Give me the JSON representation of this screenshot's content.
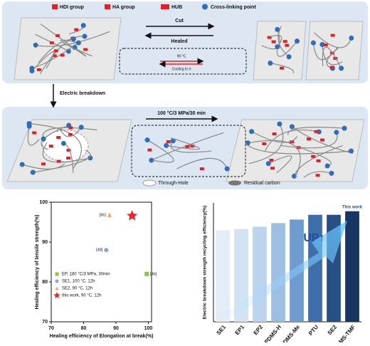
{
  "diagram": {
    "legend": [
      "HDI group",
      "HA group",
      "HUB",
      "Cross-linking point"
    ],
    "cut": "Cut",
    "healed": "Healed",
    "reaction_temp": "90 °C",
    "reaction_cool": "Cooling to rt",
    "step": "Electric breakdown",
    "condition": "100 °C/3 MPa/30 min",
    "legend2": [
      "Through-Hole",
      "Residual carbon"
    ]
  },
  "chart_data": [
    {
      "type": "scatter",
      "x_label": "Healing efficiency of Elongation at break(%)",
      "y_label": "Healing efficiency of tensile strength(%)",
      "xlim": [
        70,
        101
      ],
      "xticks": [
        70,
        80,
        90,
        100
      ],
      "ylim": [
        70,
        100
      ],
      "yticks": [
        70,
        80,
        90,
        100
      ],
      "series": [
        {
          "name": "EP, 180 °C/3 MPa, 30min",
          "color": "#8dc63f",
          "marker": "square",
          "annotation": "[46]",
          "x": [
            99.5
          ],
          "y": [
            82
          ]
        },
        {
          "name": "SE1, 100 °C, 12h",
          "color": "#7fa7d9",
          "marker": "circle",
          "annotation": "[48]",
          "x": [
            87
          ],
          "y": [
            88
          ]
        },
        {
          "name": "SE2, 90 °C, 12h",
          "color": "#f5a35c",
          "marker": "triangle",
          "annotation": "[66]",
          "x": [
            88
          ],
          "y": [
            96.8
          ]
        },
        {
          "name": "this work, 90 °C, 12h",
          "color": "#e8262d",
          "marker": "star",
          "x": [
            95
          ],
          "y": [
            96.6
          ]
        }
      ]
    },
    {
      "type": "bar",
      "y_label": "Electric breakdown strength recycling efficiency(%)",
      "categories": [
        "SE1",
        "EP1",
        "EP2",
        "PDMS-H",
        "PDMS-Me",
        "PTU",
        "SE2",
        "PDMS-TMF"
      ],
      "values": [
        77,
        78,
        80,
        83,
        86,
        90,
        90,
        93
      ],
      "colors": [
        "#e3edf8",
        "#d3e3f4",
        "#bcd4ee",
        "#9dbfe4",
        "#6f9ccf",
        "#3f6fab",
        "#274f86",
        "#173463"
      ],
      "ylim": [
        0,
        100
      ],
      "highlight": "This work",
      "trend": "UP↑"
    }
  ]
}
